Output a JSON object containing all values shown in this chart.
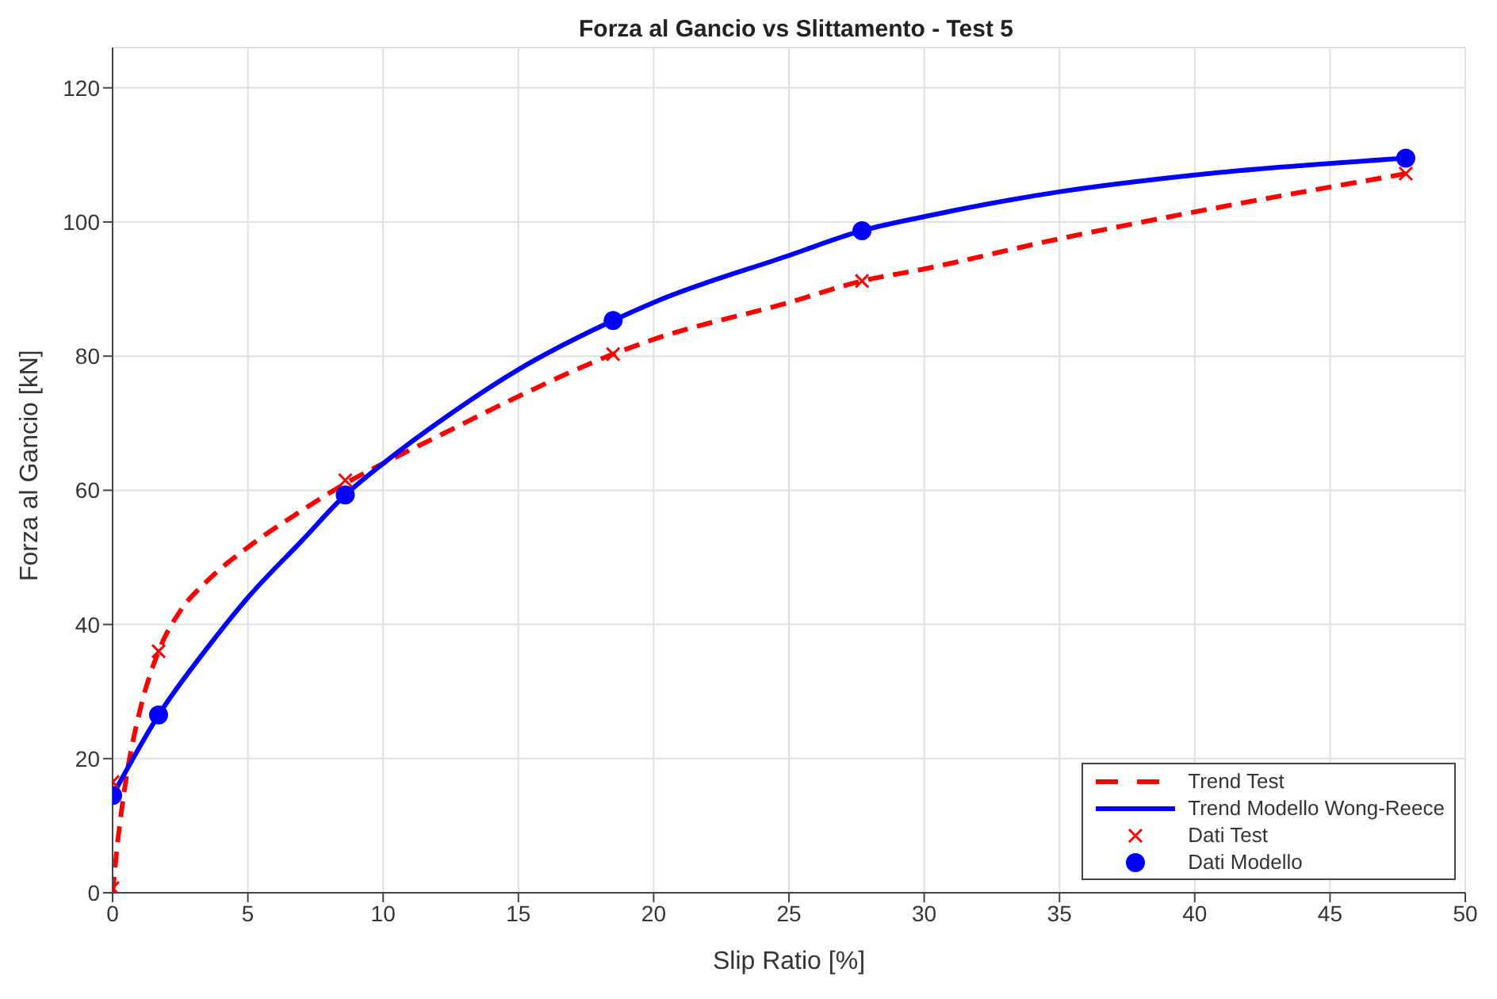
{
  "chart_data": {
    "type": "line",
    "title": "Forza al Gancio vs Slittamento - Test 5",
    "xlabel": "Slip Ratio [%]",
    "ylabel": "Forza al Gancio [kN]",
    "xlim": [
      0,
      50
    ],
    "xticks": [
      0,
      5,
      10,
      15,
      20,
      25,
      30,
      35,
      40,
      45,
      50
    ],
    "ylim": [
      0,
      126
    ],
    "yticks": [
      0,
      20,
      40,
      60,
      80,
      100,
      120
    ],
    "grid": true,
    "legend": "bottom right",
    "series": [
      {
        "name": "Trend Test",
        "type": "line",
        "color": "#ff0000",
        "line_style": "dashed",
        "marker": "none",
        "x": [
          0,
          0.2,
          0.5,
          1,
          1.7,
          2.5,
          3.5,
          5,
          7,
          8.6,
          10,
          12,
          15,
          18.5,
          20,
          25,
          27.7,
          30,
          35,
          40,
          47.8
        ],
        "values": [
          0,
          8,
          17,
          27,
          36,
          42,
          46.5,
          51.5,
          57,
          61,
          64,
          68,
          74,
          80.3,
          82.5,
          88,
          91.2,
          93,
          97.5,
          101.5,
          107.2
        ]
      },
      {
        "name": "Trend Modello Wong-Reece",
        "type": "line",
        "color": "#0000ff",
        "line_style": "solid",
        "marker": "none",
        "x": [
          0,
          1.7,
          3.5,
          5,
          7,
          8.6,
          10,
          12,
          15,
          18.5,
          20,
          25,
          27.7,
          30,
          35,
          40,
          47.8
        ],
        "values": [
          14.5,
          26.5,
          36.5,
          44,
          52.5,
          59.3,
          64,
          70,
          78,
          85.3,
          88,
          95,
          98.7,
          100.8,
          104.5,
          107,
          109.5
        ]
      },
      {
        "name": "Dati Test",
        "type": "scatter",
        "color": "#ff0000",
        "marker": "cross",
        "x": [
          0,
          0,
          1.7,
          8.6,
          18.5,
          27.7,
          47.8
        ],
        "values": [
          0.7,
          16.5,
          36,
          61.5,
          80.3,
          91.2,
          107.2
        ]
      },
      {
        "name": "Dati Modello",
        "type": "scatter",
        "color": "#0000ff",
        "marker": "circle",
        "x": [
          0,
          1.7,
          8.6,
          18.5,
          27.7,
          47.8
        ],
        "values": [
          14.5,
          26.5,
          59.3,
          85.3,
          98.7,
          109.5
        ]
      }
    ]
  }
}
